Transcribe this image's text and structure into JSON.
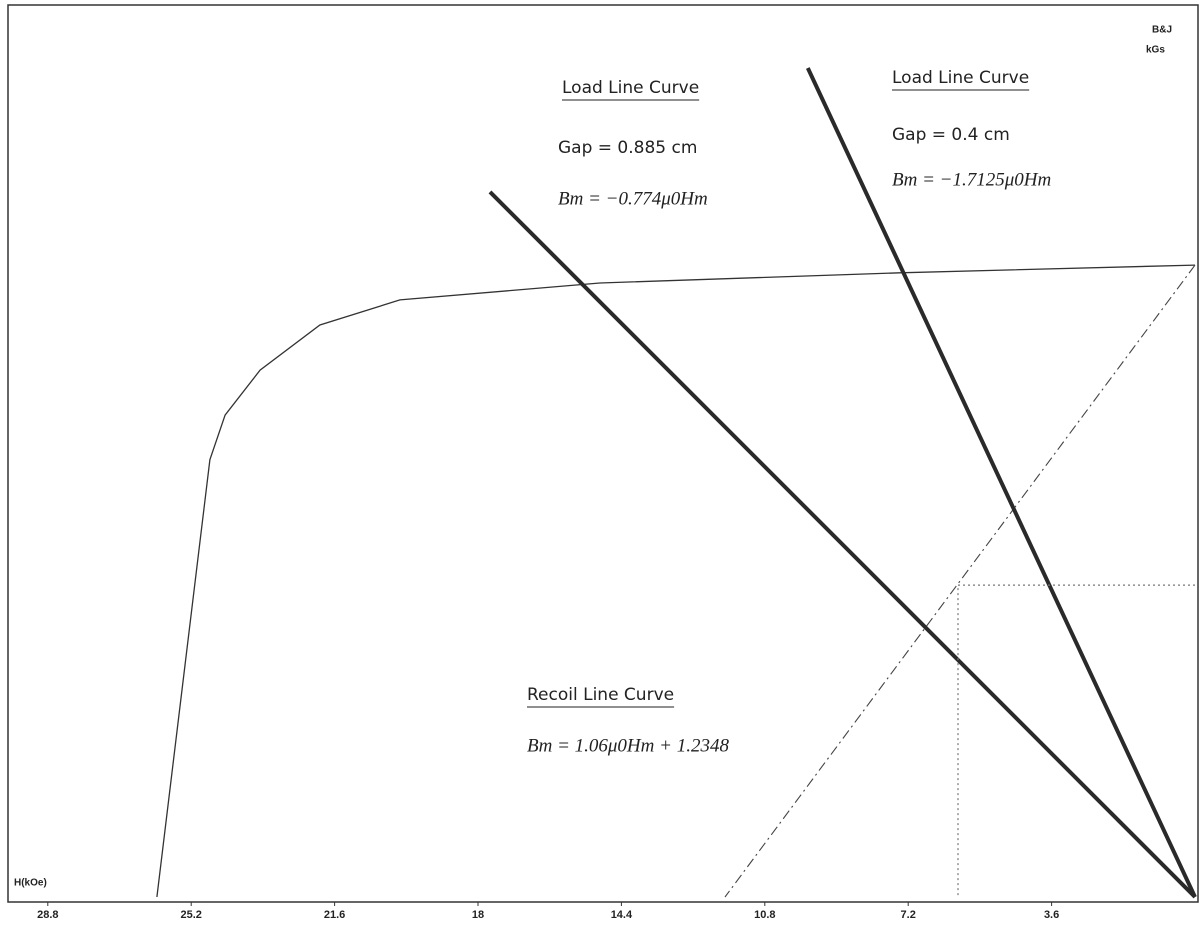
{
  "chart_data": {
    "type": "line",
    "xlabel": "H(kOe)",
    "ylabel": [
      "B&J",
      "kGs"
    ],
    "xlim": [
      30,
      0
    ],
    "ylim": [
      0,
      17.4
    ],
    "xticks": [
      28.8,
      25.2,
      21.6,
      18,
      14.4,
      10.8,
      7.2,
      3.6
    ],
    "series": [
      {
        "color": "#333333",
        "width": 1.3,
        "dash": "none",
        "x": [
          26.06,
          24.73,
          24.35,
          23.47,
          21.97,
          19.96,
          14.94,
          7.41,
          0
        ],
        "values": [
          0,
          8.54,
          9.41,
          10.29,
          11.17,
          11.66,
          11.99,
          12.19,
          12.34
        ]
      },
      {
        "color": "#444444",
        "width": 1.1,
        "dash": "10 4 2 4",
        "x": [
          0,
          11.8
        ],
        "values": [
          12.34,
          0
        ]
      },
      {
        "color": "#2a2a2a",
        "width": 4,
        "dash": "none",
        "x": [
          17.7,
          0
        ],
        "values": [
          13.77,
          0
        ]
      },
      {
        "color": "#2a2a2a",
        "width": 4,
        "dash": "none",
        "x": [
          9.72,
          0
        ],
        "values": [
          16.19,
          0
        ]
      },
      {
        "color": "#777777",
        "width": 1.2,
        "dash": "2 3",
        "x": [
          0,
          5.95,
          5.95
        ],
        "values": [
          6.09,
          6.09,
          0
        ]
      }
    ],
    "annotations": [
      {
        "title": "Load Line Curve",
        "lines": [
          "Gap = 0.885 cm",
          "Bm = −0.774μ0Hm"
        ]
      },
      {
        "title": "Load Line Curve",
        "lines": [
          "Gap = 0.4 cm",
          "Bm = −1.7125μ0Hm"
        ]
      },
      {
        "title": "Recoil Line Curve",
        "lines": [
          "Bm = 1.06μ0Hm + 1.2348"
        ]
      }
    ]
  }
}
